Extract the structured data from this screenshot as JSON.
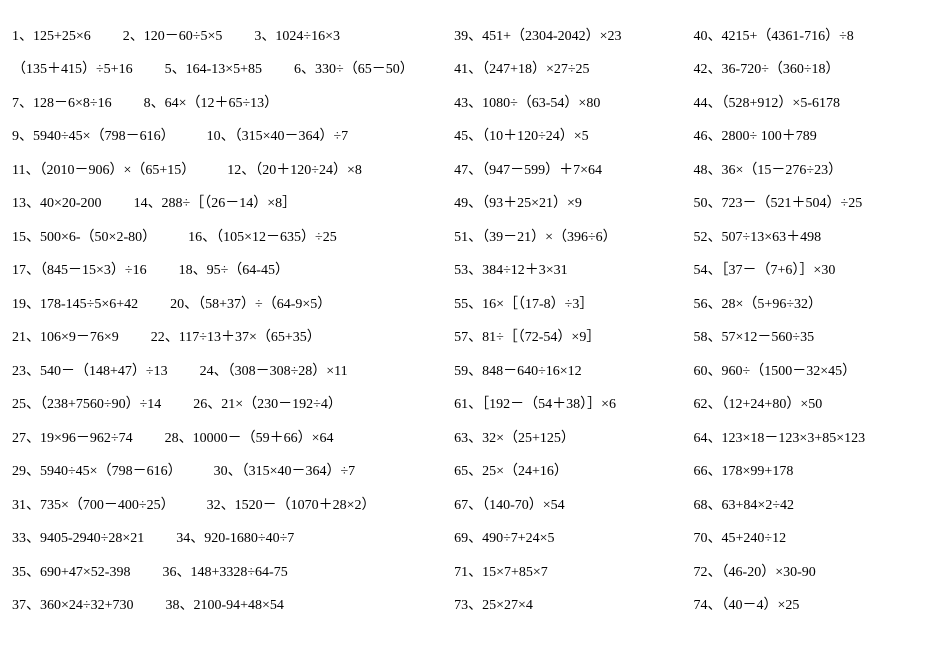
{
  "left_rows": [
    [
      {
        "n": "1",
        "expr": "125+25×6"
      },
      {
        "n": "2",
        "expr": "120－60÷5×5"
      },
      {
        "n": "3",
        "expr": "1024÷16×3"
      }
    ],
    [
      {
        "n": "",
        "expr": "（135＋415）÷5+16"
      },
      {
        "n": "5",
        "expr": "164-13×5+85"
      },
      {
        "n": "6",
        "expr": "330÷（65－50）"
      }
    ],
    [
      {
        "n": "7",
        "expr": "128－6×8÷16"
      },
      {
        "n": "8",
        "expr": "64×（12＋65÷13）"
      }
    ],
    [
      {
        "n": "9",
        "expr": "5940÷45×（798－616）"
      },
      {
        "n": "10",
        "expr": "（315×40－364）÷7"
      }
    ],
    [
      {
        "n": "11",
        "expr": "（2010－906）×（65+15）"
      },
      {
        "n": "12",
        "expr": "（20＋120÷24）×8"
      }
    ],
    [
      {
        "n": "13",
        "expr": "40×20-200"
      },
      {
        "n": "14",
        "expr": "288÷［（26－14）×8］"
      }
    ],
    [
      {
        "n": "15",
        "expr": "500×6-（50×2-80）"
      },
      {
        "n": "16",
        "expr": "（105×12－635）÷25"
      }
    ],
    [
      {
        "n": "17",
        "expr": "（845－15×3）÷16"
      },
      {
        "n": "18",
        "expr": "95÷（64-45）"
      }
    ],
    [
      {
        "n": "19",
        "expr": "178-145÷5×6+42"
      },
      {
        "n": "20",
        "expr": "（58+37）÷（64-9×5）"
      }
    ],
    [
      {
        "n": "21",
        "expr": "106×9－76×9"
      },
      {
        "n": "22",
        "expr": "117÷13＋37×（65+35）"
      }
    ],
    [
      {
        "n": "23",
        "expr": "540－（148+47）÷13"
      },
      {
        "n": "24",
        "expr": "（308－308÷28）×11"
      }
    ],
    [
      {
        "n": "25",
        "expr": "（238+7560÷90）÷14"
      },
      {
        "n": "26",
        "expr": "21×（230－192÷4）"
      }
    ],
    [
      {
        "n": "27",
        "expr": "19×96－962÷74"
      },
      {
        "n": "28",
        "expr": "10000－（59＋66）×64"
      }
    ],
    [
      {
        "n": "29",
        "expr": "5940÷45×（798－616）"
      },
      {
        "n": "30",
        "expr": "（315×40－364）÷7"
      }
    ],
    [
      {
        "n": "31",
        "expr": "735×（700－400÷25）"
      },
      {
        "n": "32",
        "expr": "1520－（1070＋28×2）"
      }
    ],
    [
      {
        "n": "33",
        "expr": "9405-2940÷28×21"
      },
      {
        "n": "34",
        "expr": "920-1680÷40÷7"
      }
    ],
    [
      {
        "n": "35",
        "expr": "690+47×52-398"
      },
      {
        "n": "36",
        "expr": "148+3328÷64-75"
      }
    ],
    [
      {
        "n": "37",
        "expr": "360×24÷32+730"
      },
      {
        "n": "38",
        "expr": "2100-94+48×54"
      }
    ]
  ],
  "mid_rows": [
    {
      "n": "39",
      "expr": "451+（2304-2042）×23"
    },
    {
      "n": "41",
      "expr": "（247+18）×27÷25"
    },
    {
      "n": "43",
      "expr": "1080÷（63-54）×80"
    },
    {
      "n": "45",
      "expr": "（10＋120÷24）×5"
    },
    {
      "n": "47",
      "expr": "（947－599）＋7×64"
    },
    {
      "n": "49",
      "expr": "（93＋25×21）×9"
    },
    {
      "n": "51",
      "expr": "（39－21）×（396÷6）"
    },
    {
      "n": "53",
      "expr": "384÷12＋3×31"
    },
    {
      "n": "55",
      "expr": "16×［（17-8）÷3］"
    },
    {
      "n": "57",
      "expr": "81÷［（72-54）×9］"
    },
    {
      "n": "59",
      "expr": "848－640÷16×12"
    },
    {
      "n": "61",
      "expr": "［192－（54＋38）］×6"
    },
    {
      "n": "63",
      "expr": "32×（25+125）"
    },
    {
      "n": "65",
      "expr": "25×（24+16）"
    },
    {
      "n": "67",
      "expr": "（140-70）×54"
    },
    {
      "n": "69",
      "expr": "490÷7+24×5"
    },
    {
      "n": "71",
      "expr": "15×7+85×7"
    },
    {
      "n": "73",
      "expr": "25×27×4"
    }
  ],
  "right_rows": [
    {
      "n": "40",
      "expr": "4215+（4361-716）÷8"
    },
    {
      "n": "42",
      "expr": "36-720÷（360÷18）"
    },
    {
      "n": "44",
      "expr": "（528+912）×5-6178"
    },
    {
      "n": "46",
      "expr": "2800÷ 100＋789"
    },
    {
      "n": "48",
      "expr": "36×（15－276÷23）"
    },
    {
      "n": "50",
      "expr": "723－（521＋504）÷25"
    },
    {
      "n": "52",
      "expr": "507÷13×63＋498"
    },
    {
      "n": "54",
      "expr": "［37－（7+6）］×30"
    },
    {
      "n": "56",
      "expr": "28×（5+96÷32）"
    },
    {
      "n": "58",
      "expr": "57×12－560÷35"
    },
    {
      "n": "60",
      "expr": "960÷（1500－32×45）"
    },
    {
      "n": "62",
      "expr": "（12+24+80）×50"
    },
    {
      "n": "64",
      "expr": "123×18－123×3+85×123"
    },
    {
      "n": "66",
      "expr": "178×99+178"
    },
    {
      "n": "68",
      "expr": "63+84×2÷42"
    },
    {
      "n": "70",
      "expr": "45+240÷12"
    },
    {
      "n": "72",
      "expr": "（46-20）×30-90"
    },
    {
      "n": "74",
      "expr": "（40－4）×25"
    }
  ],
  "font_size_main": 14,
  "font_size_small": 12,
  "text_color": "#000000",
  "background_color": "#ffffff"
}
